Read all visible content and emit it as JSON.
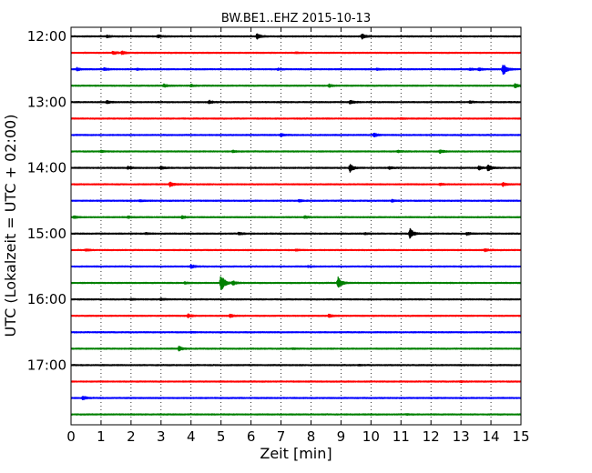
{
  "chart_data": {
    "type": "line",
    "title": "BW.BE1..EHZ 2015-10-13",
    "xlabel": "Zeit  [min]",
    "ylabel": "UTC (Lokalzeit = UTC + 02:00)",
    "xlim": [
      0,
      15
    ],
    "xticks": [
      "0",
      "1",
      "2",
      "3",
      "4",
      "5",
      "6",
      "7",
      "8",
      "9",
      "10",
      "11",
      "12",
      "13",
      "14",
      "15"
    ],
    "yticks": [
      {
        "label": "12:00",
        "row": 0
      },
      {
        "label": "13:00",
        "row": 4
      },
      {
        "label": "14:00",
        "row": 8
      },
      {
        "label": "15:00",
        "row": 12
      },
      {
        "label": "16:00",
        "row": 16
      },
      {
        "label": "17:00",
        "row": 20
      }
    ],
    "grid": "vertical-dotted",
    "row_minutes": 15,
    "colors": [
      "#000000",
      "#ff0000",
      "#0000ff",
      "#008000"
    ],
    "rows": [
      {
        "time": "12:00",
        "events": [
          [
            2.9,
            0.3
          ],
          [
            6.2,
            0.7
          ],
          [
            9.7,
            0.6
          ],
          [
            1.2,
            0.2
          ]
        ]
      },
      {
        "time": "12:15",
        "events": [
          [
            1.4,
            0.45
          ],
          [
            1.7,
            0.35
          ],
          [
            7.5,
            0.15
          ]
        ]
      },
      {
        "time": "12:30",
        "events": [
          [
            0.2,
            0.35
          ],
          [
            1.1,
            0.3
          ],
          [
            2.2,
            0.15
          ],
          [
            6.9,
            0.2
          ],
          [
            10.2,
            0.2
          ],
          [
            13.3,
            0.25
          ],
          [
            13.6,
            0.3
          ],
          [
            14.4,
            1.7
          ]
        ]
      },
      {
        "time": "12:45",
        "events": [
          [
            3.1,
            0.35
          ],
          [
            4.0,
            0.25
          ],
          [
            8.6,
            0.35
          ],
          [
            14.8,
            0.55
          ]
        ]
      },
      {
        "time": "13:00",
        "events": [
          [
            1.2,
            0.35
          ],
          [
            4.6,
            0.4
          ],
          [
            9.3,
            0.5
          ],
          [
            13.3,
            0.25
          ]
        ]
      },
      {
        "time": "13:15",
        "events": [
          [
            11.0,
            0.15
          ]
        ]
      },
      {
        "time": "13:30",
        "events": [
          [
            7.0,
            0.3
          ],
          [
            10.1,
            0.45
          ]
        ]
      },
      {
        "time": "13:45",
        "events": [
          [
            1.0,
            0.2
          ],
          [
            5.4,
            0.2
          ],
          [
            10.9,
            0.25
          ],
          [
            12.3,
            0.45
          ]
        ]
      },
      {
        "time": "14:00",
        "events": [
          [
            1.9,
            0.3
          ],
          [
            3.0,
            0.35
          ],
          [
            9.3,
            1.0
          ],
          [
            10.6,
            0.25
          ],
          [
            13.6,
            0.45
          ],
          [
            13.9,
            0.9
          ]
        ]
      },
      {
        "time": "14:15",
        "events": [
          [
            3.3,
            0.65
          ],
          [
            12.3,
            0.25
          ],
          [
            14.4,
            0.45
          ]
        ]
      },
      {
        "time": "14:30",
        "events": [
          [
            2.3,
            0.2
          ],
          [
            7.6,
            0.25
          ],
          [
            10.7,
            0.25
          ]
        ]
      },
      {
        "time": "14:45",
        "events": [
          [
            0.1,
            0.3
          ],
          [
            1.9,
            0.2
          ],
          [
            3.7,
            0.35
          ],
          [
            7.8,
            0.3
          ]
        ]
      },
      {
        "time": "15:00",
        "events": [
          [
            2.5,
            0.2
          ],
          [
            5.6,
            0.35
          ],
          [
            9.8,
            0.2
          ],
          [
            11.3,
            1.3
          ],
          [
            13.2,
            0.3
          ]
        ]
      },
      {
        "time": "15:15",
        "events": [
          [
            0.5,
            0.2
          ],
          [
            7.5,
            0.15
          ],
          [
            13.8,
            0.3
          ]
        ]
      },
      {
        "time": "15:30",
        "events": [
          [
            4.0,
            0.45
          ],
          [
            7.9,
            0.15
          ]
        ]
      },
      {
        "time": "15:45",
        "events": [
          [
            3.8,
            0.2
          ],
          [
            5.0,
            2.4
          ],
          [
            5.4,
            0.5
          ],
          [
            8.9,
            1.5
          ]
        ]
      },
      {
        "time": "16:00",
        "events": [
          [
            2.0,
            0.15
          ],
          [
            3.0,
            0.2
          ]
        ]
      },
      {
        "time": "16:15",
        "events": [
          [
            3.9,
            0.45
          ],
          [
            5.3,
            0.45
          ],
          [
            8.6,
            0.4
          ]
        ]
      },
      {
        "time": "16:30",
        "events": [
          [
            4.0,
            0.1
          ]
        ]
      },
      {
        "time": "16:45",
        "events": [
          [
            3.6,
            0.6
          ],
          [
            7.4,
            0.1
          ]
        ]
      },
      {
        "time": "17:00",
        "events": [
          [
            9.6,
            0.1
          ]
        ]
      },
      {
        "time": "17:15",
        "events": [
          [
            13.0,
            0.1
          ]
        ]
      },
      {
        "time": "17:30",
        "events": [
          [
            0.4,
            0.45
          ]
        ]
      },
      {
        "time": "17:45",
        "events": [
          [
            11.2,
            0.1
          ]
        ]
      }
    ]
  }
}
